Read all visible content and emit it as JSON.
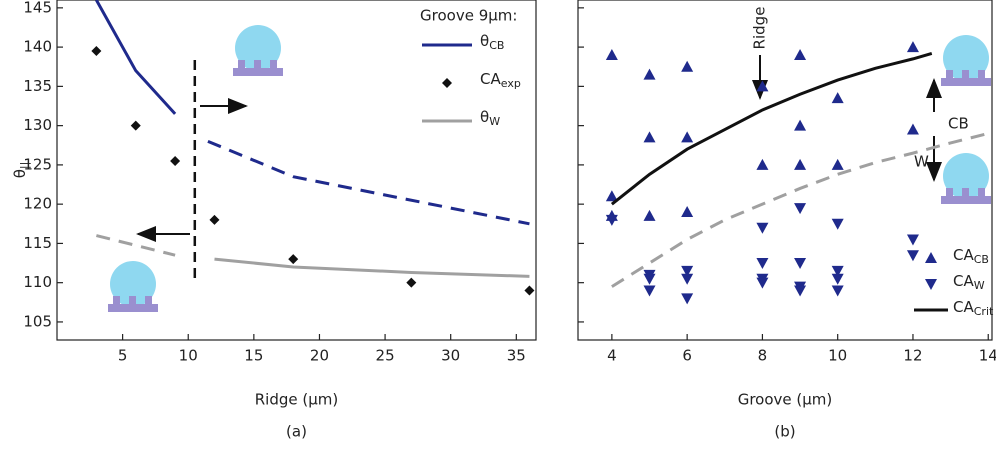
{
  "chart_data": [
    {
      "type": "line",
      "panel_label": "(a)",
      "x_label": "Ridge (μm)",
      "y_label": "θ",
      "y_label_sub": "||",
      "xlim": [
        0,
        36.5
      ],
      "xticks": [
        5,
        10,
        15,
        20,
        25,
        30,
        35
      ],
      "ylim": [
        102.7,
        146
      ],
      "yticks": [
        105,
        110,
        115,
        120,
        125,
        130,
        135,
        140,
        145
      ],
      "divider_x": 10.5,
      "legend_title": "Groove 9μm:",
      "series": [
        {
          "name": "θ",
          "name_sub": "CB",
          "color": "#1f2a8c",
          "marker": "line",
          "dash": "after-divider",
          "x": [
            3,
            6,
            9,
            11.5,
            18,
            36
          ],
          "values": [
            146,
            137,
            131.5,
            128,
            123.5,
            117.5
          ]
        },
        {
          "name": "CA",
          "name_sub": "exp",
          "color": "#111111",
          "marker": "diamond",
          "x": [
            3,
            6,
            9,
            12,
            18,
            27,
            36
          ],
          "values": [
            139.5,
            130,
            125.5,
            118,
            113,
            110,
            109
          ]
        },
        {
          "name": "θ",
          "name_sub": "W",
          "color": "#a0a0a0",
          "marker": "line",
          "dash": "before-divider",
          "x": [
            3,
            9,
            12,
            18,
            27,
            36
          ],
          "values": [
            116,
            113.5,
            113,
            112,
            111.3,
            110.8
          ]
        }
      ]
    },
    {
      "type": "scatter",
      "panel_label": "(b)",
      "x_label": "Groove (μm)",
      "xlim": [
        3.1,
        14.1
      ],
      "xticks": [
        4,
        6,
        8,
        10,
        12,
        14
      ],
      "ylim": [
        102.7,
        146
      ],
      "yticks": [
        105,
        110,
        115,
        120,
        125,
        130,
        135,
        140,
        145
      ],
      "annotations": [
        "Ridge",
        "CB",
        "W"
      ],
      "series": [
        {
          "name": "CA",
          "name_sub": "CB",
          "color": "#1f2a8c",
          "marker": "triangle-up",
          "x": [
            4,
            5,
            6,
            8,
            9,
            12,
            5,
            6,
            9,
            10,
            8,
            9,
            10,
            12,
            4,
            4,
            5,
            6
          ],
          "values": [
            139,
            136.5,
            137.5,
            135,
            139,
            140,
            128.5,
            128.5,
            130,
            133.5,
            125,
            125,
            125,
            129.5,
            121,
            118.5,
            118.5,
            119
          ]
        },
        {
          "name": "CA",
          "name_sub": "W",
          "color": "#1f2a8c",
          "marker": "triangle-down",
          "x": [
            4,
            8,
            9,
            10,
            12,
            12,
            5,
            5,
            5,
            6,
            6,
            6,
            8,
            8,
            8,
            9,
            9,
            9,
            10,
            10,
            10
          ],
          "values": [
            118,
            117,
            119.5,
            117.5,
            115.5,
            113.5,
            111,
            110.5,
            109,
            111.5,
            110.5,
            108,
            112.5,
            110.5,
            110,
            112.5,
            109.5,
            109,
            111.5,
            110.5,
            109
          ]
        },
        {
          "name": "CA",
          "name_sub": "Crit",
          "color": "#111111",
          "marker": "line",
          "x": [
            4,
            5,
            6,
            7,
            8,
            9,
            10,
            11,
            12,
            12.5
          ],
          "values": [
            120,
            123.8,
            127,
            129.5,
            132,
            134,
            135.8,
            137.3,
            138.5,
            139.2
          ]
        },
        {
          "color": "#a0a0a0",
          "marker": "line",
          "dash": "all",
          "x": [
            4,
            5,
            6,
            7,
            8,
            9,
            10,
            11,
            12,
            13,
            14
          ],
          "values": [
            109.5,
            112.5,
            115.5,
            118,
            120,
            122,
            123.8,
            125.3,
            126.5,
            127.8,
            129
          ]
        }
      ]
    }
  ]
}
